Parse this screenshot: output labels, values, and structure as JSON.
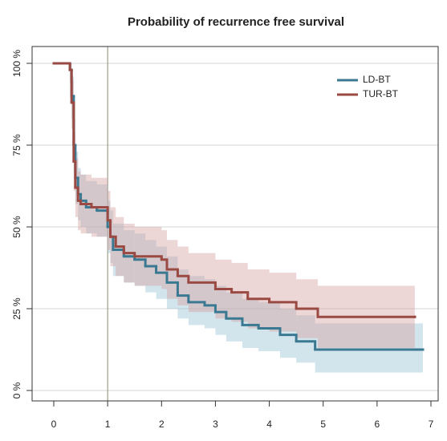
{
  "chart_data": {
    "type": "km",
    "title": "Probability of recurrence free survival",
    "xlim": [
      0,
      7
    ],
    "xticks": [
      0,
      1,
      2,
      3,
      4,
      5,
      6,
      7
    ],
    "ylim": [
      0,
      100
    ],
    "yticks": [
      {
        "value": 0,
        "label": "0 %"
      },
      {
        "value": 25,
        "label": "25 %"
      },
      {
        "value": 50,
        "label": "50 %"
      },
      {
        "value": 75,
        "label": "75 %"
      },
      {
        "value": 100,
        "label": "100 %"
      }
    ],
    "grid": true,
    "vline": 1,
    "legend": "top-right",
    "series": [
      {
        "name": "LD-BT",
        "color": "#3b7892",
        "band_color": "#9cc3d4",
        "x": [
          0,
          0.3,
          0.33,
          0.37,
          0.4,
          0.45,
          0.5,
          0.6,
          0.8,
          1.0,
          1.05,
          1.1,
          1.3,
          1.5,
          1.7,
          1.9,
          2.1,
          2.3,
          2.5,
          2.8,
          3.0,
          3.2,
          3.5,
          3.8,
          4.2,
          4.5,
          4.85,
          6.85
        ],
        "values": [
          100,
          98,
          90,
          75,
          65,
          60,
          58,
          56,
          55,
          50,
          47,
          43,
          41,
          40,
          38,
          36,
          33,
          29,
          27,
          26,
          24,
          22,
          20,
          19,
          17,
          15,
          12.5,
          12.5
        ],
        "upper": [
          100,
          100,
          96,
          83,
          73,
          68,
          66,
          64,
          63,
          58,
          55,
          51,
          49,
          48,
          46,
          44,
          41,
          37,
          35,
          34,
          32,
          30,
          28,
          27,
          25,
          23,
          20.5,
          20.5
        ],
        "lower": [
          100,
          95,
          83,
          67,
          57,
          52,
          50,
          48,
          47,
          42,
          39,
          35,
          33,
          32,
          30,
          28,
          25,
          22,
          20,
          19,
          17,
          15,
          13,
          12,
          10,
          8.5,
          5.5,
          5.5
        ]
      },
      {
        "name": "TUR-BT",
        "color": "#9a4a42",
        "band_color": "#d4a5a5",
        "x": [
          0,
          0.3,
          0.33,
          0.37,
          0.4,
          0.45,
          0.5,
          0.7,
          1.0,
          1.05,
          1.15,
          1.3,
          1.5,
          2.0,
          2.1,
          2.3,
          2.5,
          3.0,
          3.3,
          3.6,
          4.0,
          4.5,
          4.9,
          6.7
        ],
        "values": [
          100,
          98,
          88,
          70,
          62,
          58,
          57,
          56,
          52,
          47,
          44,
          42,
          41,
          40,
          37,
          35,
          33,
          31,
          30,
          28,
          27,
          25,
          22.5,
          22.5
        ],
        "upper": [
          100,
          100,
          95,
          79,
          71,
          67,
          66,
          65,
          61,
          56,
          53,
          51,
          50,
          49,
          46,
          44,
          42,
          40,
          39,
          37,
          36,
          34,
          32,
          32
        ],
        "lower": [
          100,
          94,
          80,
          61,
          53,
          49,
          48,
          47,
          43,
          38,
          35,
          33,
          32,
          31,
          28,
          26,
          24,
          22,
          21,
          19,
          18,
          16,
          13,
          13
        ]
      }
    ]
  }
}
